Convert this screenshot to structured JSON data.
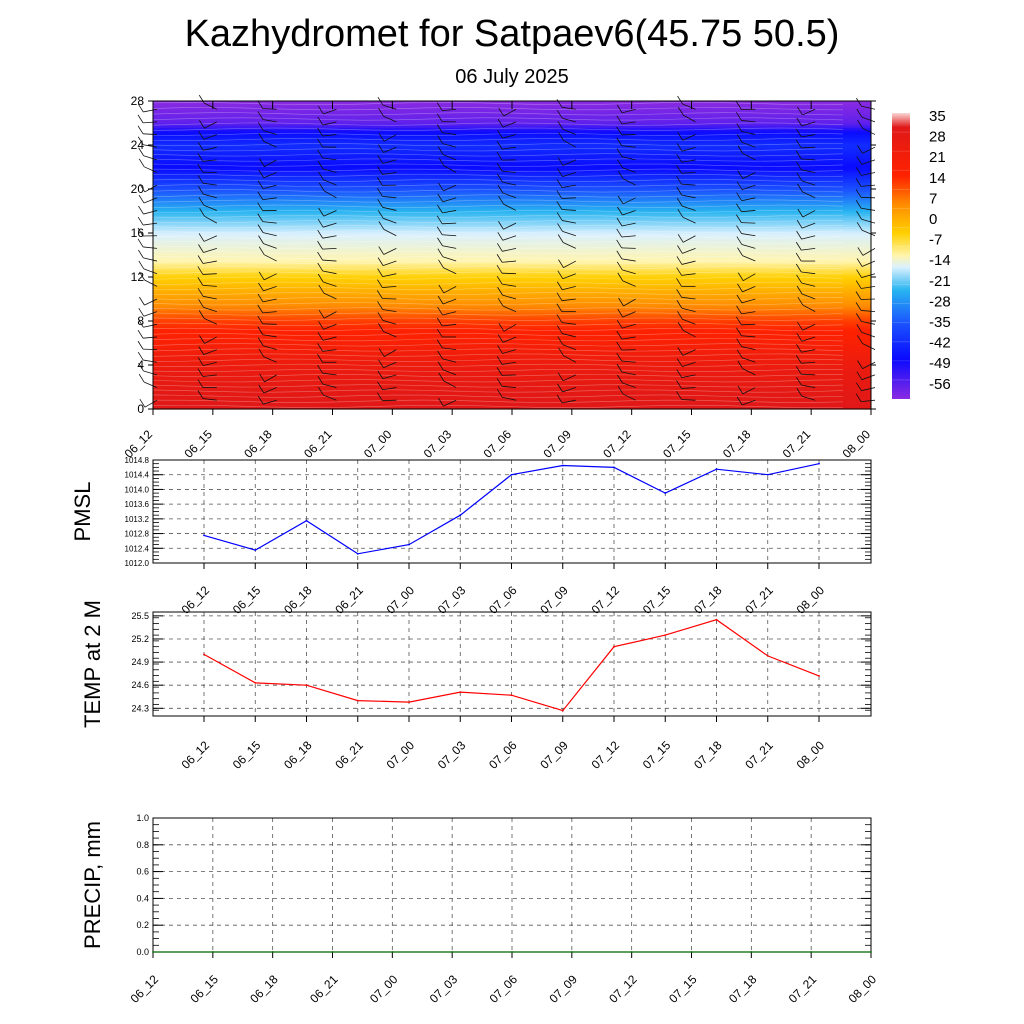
{
  "header": {
    "title": "Kazhydromet for Satpaev6(45.75 50.5)",
    "subtitle": "06 July 2025"
  },
  "chart_data": [
    {
      "type": "heatmap",
      "title": "",
      "ylim": [
        0,
        28
      ],
      "yticks": [
        "0",
        "4",
        "8",
        "12",
        "16",
        "20",
        "24",
        "28"
      ],
      "x": [
        "06_12",
        "06_15",
        "06_18",
        "06_21",
        "07_00",
        "07_03",
        "07_06",
        "07_09",
        "07_12",
        "07_15",
        "07_18",
        "07_21",
        "08_00"
      ],
      "colorbar_labels": [
        "35",
        "28",
        "21",
        "14",
        "7",
        "0",
        "-7",
        "-14",
        "-21",
        "-28",
        "-35",
        "-42",
        "-49",
        "-56"
      ],
      "temperature_by_level": [
        {
          "level": 0,
          "value": 35
        },
        {
          "level": 4,
          "value": 30
        },
        {
          "level": 8,
          "value": 20
        },
        {
          "level": 12,
          "value": 3
        },
        {
          "level": 13.5,
          "value": -10
        },
        {
          "level": 16,
          "value": -22
        },
        {
          "level": 18,
          "value": -32
        },
        {
          "level": 20,
          "value": -44
        },
        {
          "level": 22,
          "value": -56
        },
        {
          "level": 24,
          "value": -50
        },
        {
          "level": 26,
          "value": -60
        },
        {
          "level": 28,
          "value": -62
        }
      ],
      "wind_barbs": "yes"
    },
    {
      "type": "line",
      "ylabel": "PMSL",
      "ylim": [
        1012.0,
        1014.8
      ],
      "yticks": [
        "1012.0",
        "1012.4",
        "1012.8",
        "1013.2",
        "1013.6",
        "1014.0",
        "1014.4",
        "1014.8"
      ],
      "x": [
        "06_12",
        "06_15",
        "06_18",
        "06_21",
        "07_00",
        "07_03",
        "07_06",
        "07_09",
        "07_12",
        "07_15",
        "07_18",
        "07_21",
        "08_00"
      ],
      "series": [
        {
          "values": [
            1012.75,
            1012.35,
            1013.15,
            1012.25,
            1012.5,
            1013.3,
            1014.4,
            1014.65,
            1014.6,
            1013.9,
            1014.55,
            1014.4,
            1014.7
          ],
          "color": "#0000ff"
        }
      ],
      "grid": "dashed"
    },
    {
      "type": "line",
      "ylabel": "TEMP at 2 M",
      "ylim": [
        24.2,
        25.55
      ],
      "yticks": [
        "24.3",
        "24.6",
        "24.9",
        "25.2",
        "25.5"
      ],
      "x": [
        "06_12",
        "06_15",
        "06_18",
        "06_21",
        "07_00",
        "07_03",
        "07_06",
        "07_09",
        "07_12",
        "07_15",
        "07_18",
        "07_21",
        "08_00"
      ],
      "series": [
        {
          "values": [
            25.0,
            24.63,
            24.6,
            24.4,
            24.38,
            24.51,
            24.47,
            24.27,
            25.1,
            25.25,
            25.45,
            24.98,
            24.72
          ],
          "color": "#ff0000"
        }
      ],
      "grid": "dashed"
    },
    {
      "type": "line",
      "ylabel": "PRECIP, mm",
      "ylim": [
        0.0,
        1.0
      ],
      "yticks": [
        "0.0",
        "0.2",
        "0.4",
        "0.6",
        "0.8",
        "1.0"
      ],
      "x": [
        "06_12",
        "06_15",
        "06_18",
        "06_21",
        "07_00",
        "07_03",
        "07_06",
        "07_09",
        "07_12",
        "07_15",
        "07_18",
        "07_21",
        "08_00"
      ],
      "series": [
        {
          "values": [
            0,
            0,
            0,
            0,
            0,
            0,
            0,
            0,
            0,
            0,
            0,
            0,
            0
          ],
          "color": "#006400"
        }
      ],
      "grid": "dashed"
    }
  ]
}
